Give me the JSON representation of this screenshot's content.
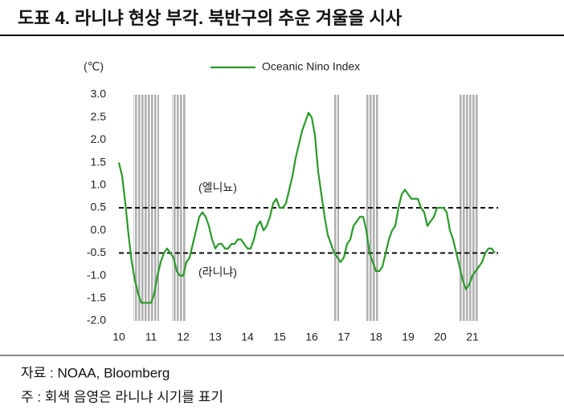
{
  "chart_data": {
    "type": "line",
    "title": "도표 4. 라니냐 현상 부각. 북반구의 추운 겨울을 시사",
    "ylabel": "(℃)",
    "source": "자료 : NOAA, Bloomberg",
    "note": "주 : 회색 음영은 라니냐 시기를 표기",
    "xlim": [
      10,
      22
    ],
    "xticks": [
      10,
      11,
      12,
      13,
      14,
      15,
      16,
      17,
      18,
      19,
      20,
      21
    ],
    "ylim": [
      -2,
      3
    ],
    "yticks": [
      {
        "value": 3,
        "label": "3.0"
      },
      2.5,
      {
        "value": 2,
        "label": "2.0"
      },
      1.5,
      {
        "value": 1,
        "label": "1.0"
      },
      0.5,
      {
        "value": 0,
        "label": "0.0"
      },
      -0.5,
      {
        "value": -1,
        "label": "-1.0"
      },
      -1.5,
      {
        "value": -2,
        "label": "-2.0"
      }
    ],
    "legend": "top",
    "reference_lines": [
      {
        "value": 0.5,
        "label": "(엘니뇨)"
      },
      {
        "value": -0.5,
        "label": "(라니냐)"
      }
    ],
    "shaded_periods": [
      [
        10.45,
        11.25
      ],
      [
        11.65,
        12.1
      ],
      [
        16.7,
        16.85
      ],
      [
        17.7,
        18.1
      ],
      [
        20.6,
        21.2
      ]
    ],
    "shade_color": "#b0b0b0",
    "series": [
      {
        "name": "Oceanic Nino Index",
        "color": "#2a9a2a",
        "x": [
          10.0,
          10.1,
          10.2,
          10.3,
          10.4,
          10.5,
          10.6,
          10.7,
          10.8,
          10.9,
          11.0,
          11.1,
          11.2,
          11.3,
          11.4,
          11.5,
          11.6,
          11.7,
          11.8,
          11.9,
          12.0,
          12.1,
          12.2,
          12.3,
          12.4,
          12.5,
          12.6,
          12.7,
          12.8,
          12.9,
          13.0,
          13.1,
          13.2,
          13.3,
          13.4,
          13.5,
          13.6,
          13.7,
          13.8,
          13.9,
          14.0,
          14.1,
          14.2,
          14.3,
          14.4,
          14.5,
          14.6,
          14.7,
          14.8,
          14.9,
          15.0,
          15.1,
          15.2,
          15.3,
          15.4,
          15.5,
          15.6,
          15.7,
          15.8,
          15.9,
          16.0,
          16.1,
          16.2,
          16.3,
          16.4,
          16.5,
          16.6,
          16.7,
          16.8,
          16.9,
          17.0,
          17.1,
          17.2,
          17.3,
          17.4,
          17.5,
          17.6,
          17.7,
          17.8,
          17.9,
          18.0,
          18.1,
          18.2,
          18.3,
          18.4,
          18.5,
          18.6,
          18.7,
          18.8,
          18.9,
          19.0,
          19.1,
          19.2,
          19.3,
          19.4,
          19.5,
          19.6,
          19.7,
          19.8,
          19.9,
          20.0,
          20.1,
          20.2,
          20.3,
          20.4,
          20.5,
          20.6,
          20.7,
          20.8,
          20.9,
          21.0,
          21.1,
          21.2,
          21.3,
          21.4,
          21.5,
          21.6,
          21.7
        ],
        "values": [
          1.5,
          1.2,
          0.6,
          -0.1,
          -0.7,
          -1.1,
          -1.4,
          -1.6,
          -1.6,
          -1.6,
          -1.6,
          -1.4,
          -1.0,
          -0.7,
          -0.5,
          -0.4,
          -0.5,
          -0.6,
          -0.9,
          -1.0,
          -1.0,
          -0.7,
          -0.6,
          -0.3,
          0.0,
          0.3,
          0.4,
          0.3,
          0.1,
          -0.2,
          -0.4,
          -0.3,
          -0.3,
          -0.4,
          -0.4,
          -0.3,
          -0.3,
          -0.2,
          -0.2,
          -0.3,
          -0.4,
          -0.4,
          -0.2,
          0.1,
          0.2,
          0.0,
          0.1,
          0.3,
          0.6,
          0.7,
          0.5,
          0.5,
          0.6,
          0.9,
          1.2,
          1.6,
          1.9,
          2.2,
          2.4,
          2.6,
          2.5,
          2.1,
          1.3,
          0.8,
          0.3,
          -0.1,
          -0.3,
          -0.5,
          -0.6,
          -0.7,
          -0.6,
          -0.3,
          -0.2,
          0.1,
          0.2,
          0.3,
          0.3,
          0.0,
          -0.5,
          -0.7,
          -0.9,
          -0.9,
          -0.8,
          -0.5,
          -0.2,
          0.0,
          0.1,
          0.5,
          0.8,
          0.9,
          0.8,
          0.7,
          0.7,
          0.7,
          0.5,
          0.4,
          0.1,
          0.2,
          0.3,
          0.5,
          0.5,
          0.5,
          0.4,
          0.0,
          -0.2,
          -0.5,
          -0.8,
          -1.1,
          -1.3,
          -1.2,
          -1.0,
          -0.9,
          -0.8,
          -0.7,
          -0.5,
          -0.4,
          -0.4,
          -0.5
        ]
      }
    ]
  }
}
